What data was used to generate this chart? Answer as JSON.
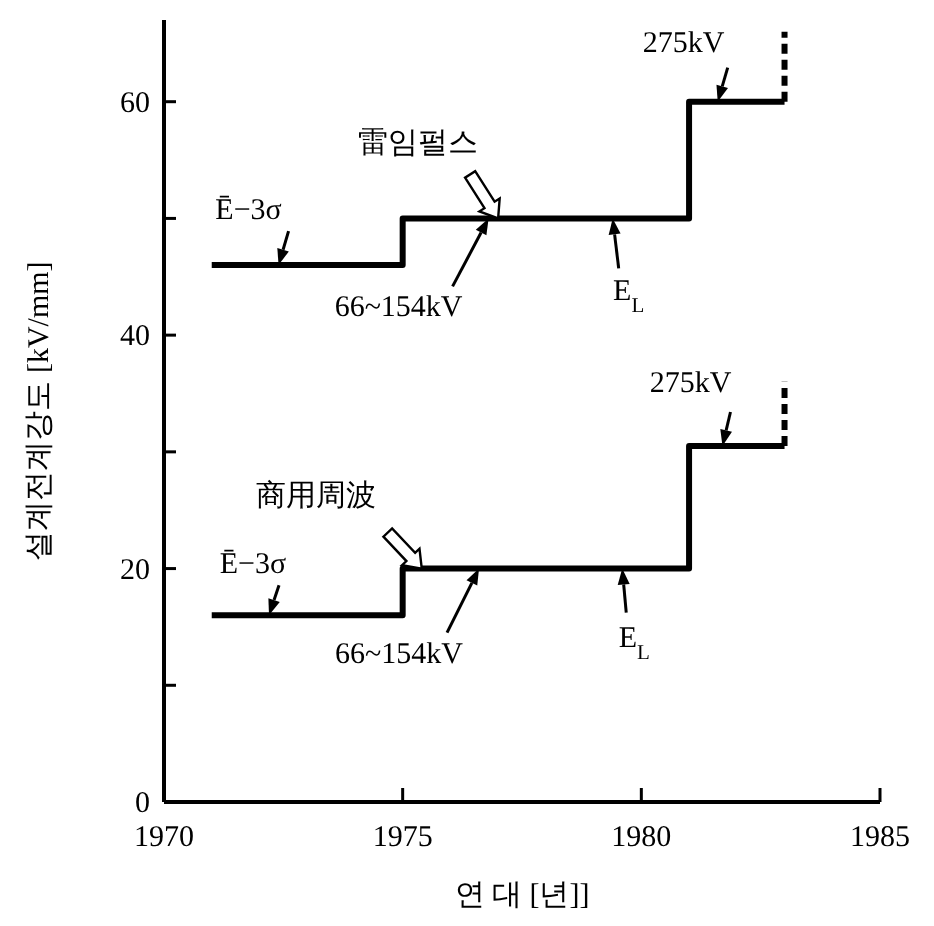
{
  "chart_data": {
    "type": "step",
    "xlabel": "연  대 [년]]",
    "ylabel": "설계전계강도 [kV/mm]",
    "xlim": [
      1970,
      1985
    ],
    "ylim": [
      0,
      67
    ],
    "xticks": [
      1970,
      1975,
      1980,
      1985
    ],
    "yticks": [
      0,
      {
        "value": 10,
        "label": null
      },
      20,
      {
        "value": 30,
        "label": null
      },
      40,
      {
        "value": 50,
        "label": null
      },
      60
    ],
    "series": [
      {
        "color": "#000000",
        "x": [
          1971,
          1975,
          1981,
          1983
        ],
        "values": [
          46,
          50,
          60,
          60
        ]
      },
      {
        "color": "#000000",
        "x": [
          1971,
          1975,
          1981,
          1983
        ],
        "values": [
          16,
          20,
          30.5,
          30.5
        ]
      },
      {
        "type": "line",
        "line_style": "dashed",
        "color": "#000000",
        "x": [
          1983,
          1983
        ],
        "values": [
          60,
          66
        ]
      },
      {
        "type": "line",
        "line_style": "dashed",
        "color": "#000000",
        "x": [
          1983,
          1983
        ],
        "values": [
          30.5,
          36
        ]
      }
    ],
    "annotations": [
      {
        "text": "Ē−3σ",
        "x": 1972.4,
        "y": 46
      },
      {
        "text": "66~154kV",
        "x": 1976.8,
        "y": 50
      },
      {
        "text": "雷임펄스",
        "x": 1977,
        "y": 50
      },
      {
        "text": "E$_{L}$",
        "x": 1979.4,
        "y": 50
      },
      {
        "text": "275kV",
        "x": 1981.6,
        "y": 60
      },
      {
        "text": "Ē−3σ",
        "x": 1972.2,
        "y": 16
      },
      {
        "text": "66~154kV",
        "x": 1976.6,
        "y": 20
      },
      {
        "text": "商用周波",
        "x": 1975.4,
        "y": 20
      },
      {
        "text": "E$_{L}$",
        "x": 1979.6,
        "y": 20
      },
      {
        "text": "275kV",
        "x": 1981.7,
        "y": 30.5
      }
    ]
  }
}
